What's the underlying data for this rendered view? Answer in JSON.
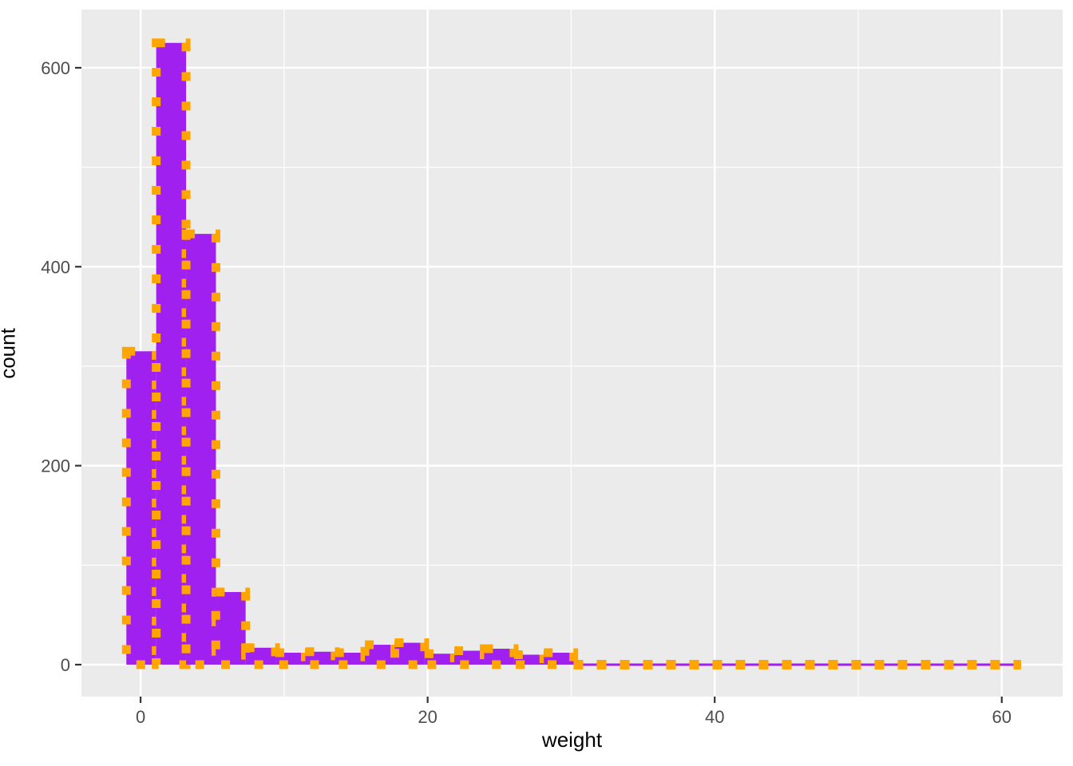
{
  "figure": {
    "background": "#FFFFFF",
    "panel_background": "#EBEBEB",
    "grid_major_color": "#FFFFFF",
    "grid_minor_color": "#FFFFFF",
    "tick_mark_color": "#333333",
    "axis_text_color": "#4D4D4D",
    "axis_title_color": "#000000"
  },
  "chart_data": {
    "type": "bar",
    "subtype": "histogram",
    "title": "",
    "xlabel": "weight",
    "ylabel": "count",
    "legend": "none",
    "grid": true,
    "bar_fill": "#A020F0",
    "bar_outline": "#FFA500",
    "bar_outline_style": "dashed",
    "bin_width": 2.08,
    "x": [
      0.05,
      2.13,
      4.21,
      6.28,
      8.36,
      10.44,
      12.52,
      14.59,
      16.67,
      18.75,
      20.83,
      22.9,
      24.98,
      27.06,
      29.14,
      31.21,
      33.29,
      35.37,
      37.45,
      39.52,
      41.6,
      43.68,
      45.76,
      47.83,
      49.91,
      51.99,
      54.07,
      56.14,
      58.22,
      60.3
    ],
    "values": [
      315,
      625,
      433,
      73,
      17,
      12,
      13,
      12,
      20,
      22,
      11,
      14,
      16,
      10,
      12,
      0,
      0,
      0,
      0,
      0,
      0,
      0,
      0,
      0,
      0,
      0,
      0,
      0,
      0,
      0
    ],
    "xlim": [
      -4.12,
      64.24
    ],
    "ylim": [
      -32.1,
      658.5
    ],
    "x_ticks": [
      0,
      20,
      40,
      60
    ],
    "y_ticks": [
      0,
      200,
      400,
      600
    ],
    "x_minor": [
      10,
      30,
      50
    ],
    "y_minor": [
      100,
      300,
      500
    ]
  }
}
